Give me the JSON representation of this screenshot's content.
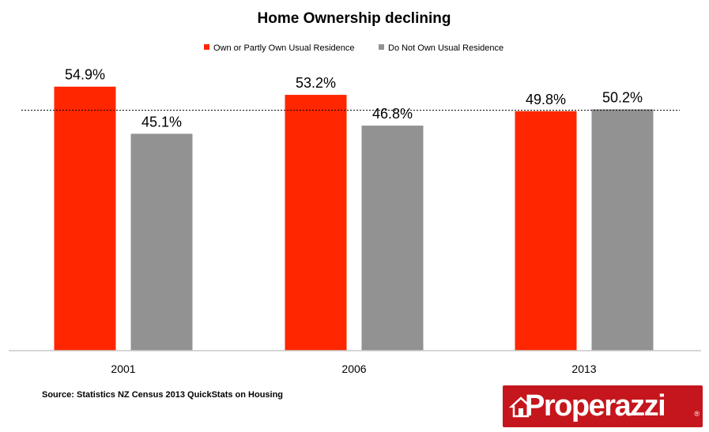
{
  "chart_data": {
    "type": "bar",
    "title": "Home Ownership declining",
    "categories": [
      "2001",
      "2006",
      "2013"
    ],
    "series": [
      {
        "name": "Own or Partly Own Usual Residence",
        "color": "#ff2600",
        "values": [
          54.9,
          53.2,
          49.8
        ]
      },
      {
        "name": "Do Not Own Usual Residence",
        "color": "#929292",
        "values": [
          45.1,
          46.8,
          50.2
        ]
      }
    ],
    "data_labels": [
      [
        "54.9%",
        "53.2%",
        "49.8%"
      ],
      [
        "45.1%",
        "46.8%",
        "50.2%"
      ]
    ],
    "reference_line": {
      "value": 50,
      "style": "dashed"
    },
    "ylim": [
      0,
      56.5
    ],
    "legend_position": "top-center",
    "grid": false
  },
  "source": "Source: Statistics NZ Census 2013 QuickStats on Housing",
  "logo": {
    "text": "Properazzi",
    "mark": "®"
  }
}
